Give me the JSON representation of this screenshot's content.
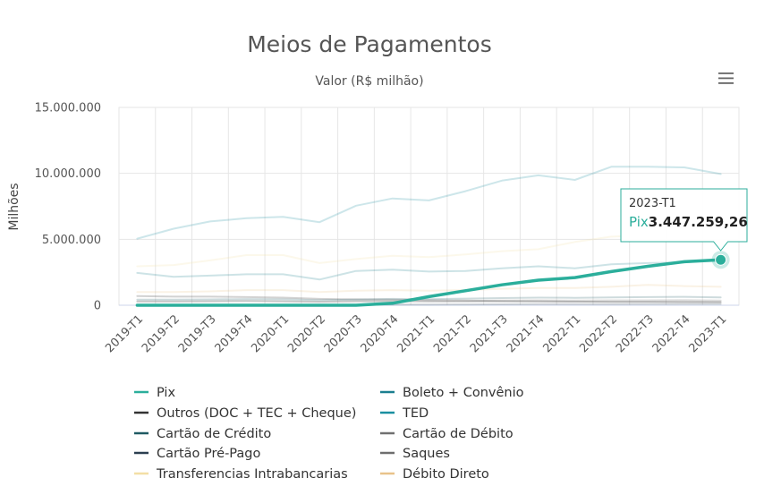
{
  "menu_icon": "hamburger-menu-icon",
  "chart_data": {
    "type": "line",
    "title": "Meios de Pagamentos",
    "subtitle": "Valor (R$ milhão)",
    "ylabel": "Milhões",
    "xlabel": "",
    "ylim": [
      0,
      15000000
    ],
    "yticks": [
      0,
      5000000,
      10000000,
      15000000
    ],
    "ytick_labels": [
      "0",
      "5.000.000",
      "10.000.000",
      "15.000.000"
    ],
    "grid": true,
    "legend_position": "bottom",
    "categories": [
      "2019-T1",
      "2019-T2",
      "2019-T3",
      "2019-T4",
      "2020-T1",
      "2020-T2",
      "2020-T3",
      "2020-T4",
      "2021-T1",
      "2021-T2",
      "2021-T3",
      "2021-T4",
      "2022-T1",
      "2022-T2",
      "2022-T3",
      "2022-T4",
      "2023-T1"
    ],
    "highlighted_series": "Pix",
    "series": [
      {
        "name": "Pix",
        "color": "#2bae9b",
        "values": [
          0,
          0,
          0,
          0,
          0,
          0,
          0,
          150000,
          650000,
          1100000,
          1550000,
          1900000,
          2100000,
          2550000,
          2950000,
          3300000,
          3447259.26
        ]
      },
      {
        "name": "Boleto + Convênio",
        "color": "#1b7e8f",
        "values": [
          2450000,
          2150000,
          2250000,
          2350000,
          2350000,
          1950000,
          2600000,
          2700000,
          2550000,
          2600000,
          2800000,
          2950000,
          2800000,
          3100000,
          3200000,
          3250000,
          3447259
        ]
      },
      {
        "name": "Outros (DOC + TEC + Cheque)",
        "color": "#333333",
        "values": [
          700000,
          650000,
          650000,
          620000,
          580000,
          480000,
          450000,
          420000,
          380000,
          350000,
          320000,
          300000,
          280000,
          260000,
          250000,
          240000,
          230000
        ]
      },
      {
        "name": "TED",
        "color": "#1a8fa0",
        "values": [
          5050000,
          5800000,
          6350000,
          6600000,
          6700000,
          6300000,
          7550000,
          8100000,
          7950000,
          8650000,
          9450000,
          9850000,
          9500000,
          10500000,
          10500000,
          10450000,
          9950000
        ]
      },
      {
        "name": "Cartão de Crédito",
        "color": "#1f5a63",
        "values": [
          420000,
          420000,
          440000,
          470000,
          450000,
          380000,
          430000,
          480000,
          460000,
          500000,
          540000,
          580000,
          560000,
          600000,
          620000,
          640000,
          600000
        ]
      },
      {
        "name": "Cartão de Débito",
        "color": "#707070",
        "values": [
          280000,
          280000,
          290000,
          310000,
          300000,
          270000,
          310000,
          340000,
          320000,
          330000,
          350000,
          370000,
          350000,
          370000,
          370000,
          390000,
          360000
        ]
      },
      {
        "name": "Cartão Pré-Pago",
        "color": "#2c3e50",
        "values": [
          20000,
          20000,
          25000,
          30000,
          30000,
          30000,
          40000,
          50000,
          55000,
          60000,
          70000,
          80000,
          80000,
          90000,
          95000,
          100000,
          100000
        ]
      },
      {
        "name": "Saques",
        "color": "#6e6e6e",
        "values": [
          300000,
          300000,
          310000,
          330000,
          300000,
          250000,
          280000,
          290000,
          270000,
          270000,
          280000,
          290000,
          270000,
          270000,
          270000,
          280000,
          260000
        ]
      },
      {
        "name": "Transferencias Intrabancarias",
        "color": "#f3dfa5",
        "values": [
          2950000,
          3050000,
          3400000,
          3800000,
          3800000,
          3200000,
          3500000,
          3750000,
          3650000,
          3850000,
          4100000,
          4250000,
          4800000,
          5200000,
          5300000,
          5300000,
          5200000
        ]
      },
      {
        "name": "Débito Direto",
        "color": "#e8c38a",
        "values": [
          1000000,
          1000000,
          1050000,
          1150000,
          1150000,
          1000000,
          1100000,
          1150000,
          1100000,
          1150000,
          1250000,
          1300000,
          1300000,
          1400000,
          1550000,
          1450000,
          1400000
        ]
      }
    ],
    "tooltip": {
      "x": "2023-T1",
      "series": "Pix",
      "value": "3.447.259,26"
    }
  }
}
